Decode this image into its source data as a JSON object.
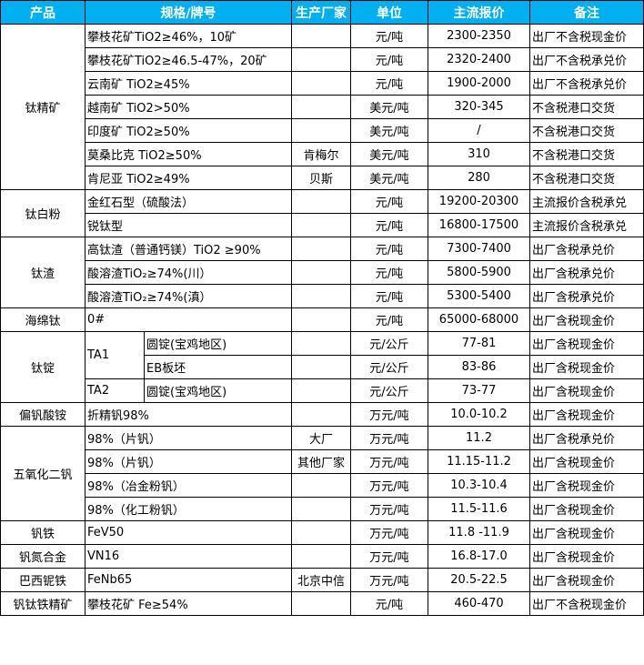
{
  "header": {
    "product": "产品",
    "spec": "规格/牌号",
    "maker": "生产厂家",
    "unit": "单位",
    "price": "主流报价",
    "note": "备注"
  },
  "colors": {
    "header_bg": "#00b0f0",
    "header_text": "#ffffff",
    "border": "#000000"
  },
  "groups": [
    {
      "product": "钛精矿",
      "rows": [
        {
          "spec": "攀枝花矿TiO2≥46%，10矿",
          "maker": "",
          "unit": "元/吨",
          "price": "2300-2350",
          "note": "出厂不含税现金价"
        },
        {
          "spec": "攀枝花矿TiO2≥46.5-47%，20矿",
          "maker": "",
          "unit": "元/吨",
          "price": "2320-2400",
          "note": "出厂不含税承兑价"
        },
        {
          "spec": "云南矿 TiO2≥45%",
          "maker": "",
          "unit": "元/吨",
          "price": "1900-2000",
          "note": "出厂不含税承兑价"
        },
        {
          "spec": "越南矿 TiO2>50%",
          "maker": "",
          "unit": "美元/吨",
          "price": "320-345",
          "note": "不含税港口交货"
        },
        {
          "spec": "印度矿 TiO2≥50%",
          "maker": "",
          "unit": "美元/吨",
          "price": "/",
          "note": "不含税港口交货"
        },
        {
          "spec": "莫桑比克 TiO2≥50%",
          "maker": "肯梅尔",
          "unit": "美元/吨",
          "price": "310",
          "note": "不含税港口交货"
        },
        {
          "spec": "肯尼亚 TiO2≥49%",
          "maker": "贝斯",
          "unit": "美元/吨",
          "price": "280",
          "note": "不含税港口交货"
        }
      ]
    },
    {
      "product": "钛白粉",
      "rows": [
        {
          "spec": "金红石型（硫酸法）",
          "maker": "",
          "unit": "元/吨",
          "price": "19200-20300",
          "note": "主流报价含税承兑"
        },
        {
          "spec": "锐钛型",
          "maker": "",
          "unit": "元/吨",
          "price": "16800-17500",
          "note": "主流报价含税承兑"
        }
      ]
    },
    {
      "product": "钛渣",
      "rows": [
        {
          "spec": "高钛渣（普通钙镁）TiO2 ≥90%",
          "maker": "",
          "unit": "元/吨",
          "price": "7300-7400",
          "note": "出厂含税承兑价"
        },
        {
          "spec": "酸溶渣TiO₂≥74%(川）",
          "maker": "",
          "unit": "元/吨",
          "price": "5800-5900",
          "note": "出厂含税承兑价"
        },
        {
          "spec": "酸溶渣TiO₂≥74%(滇）",
          "maker": "",
          "unit": "元/吨",
          "price": "5300-5400",
          "note": "出厂含税承兑价"
        }
      ]
    },
    {
      "product": "海绵钛",
      "rows": [
        {
          "spec": "0#",
          "maker": "",
          "unit": "元/吨",
          "price": "65000-68000",
          "note": "出厂含税现金价"
        }
      ]
    },
    {
      "product": "钛锭",
      "rows": [
        {
          "grade": "TA1",
          "grade_span": 2,
          "sub": "圆锭(宝鸡地区)",
          "maker": "",
          "unit": "元/公斤",
          "price": "77-81",
          "note": "出厂含税现金价"
        },
        {
          "sub": "EB板坯",
          "maker": "",
          "unit": "元/公斤",
          "price": "83-86",
          "note": "出厂含税现金价"
        },
        {
          "grade": "TA2",
          "grade_span": 1,
          "sub": "圆锭(宝鸡地区)",
          "maker": "",
          "unit": "元/公斤",
          "price": "73-77",
          "note": "出厂含税现金价"
        }
      ]
    },
    {
      "product": "偏钒酸铵",
      "rows": [
        {
          "spec": "折精钒98%",
          "maker": "",
          "unit": "万元/吨",
          "price": "10.0-10.2",
          "note": "出厂含税现金价"
        }
      ]
    },
    {
      "product": "五氧化二钒",
      "rows": [
        {
          "spec": "98%（片钒）",
          "maker": "大厂",
          "unit": "万元/吨",
          "price": "11.2",
          "note": "出厂含税承兑价"
        },
        {
          "spec": "98%（片钒）",
          "maker": "其他厂家",
          "unit": "万元/吨",
          "price": "11.15-11.2",
          "note": "出厂含税现金价"
        },
        {
          "spec": "98%（冶金粉钒）",
          "maker": "",
          "unit": "万元/吨",
          "price": "10.3-10.4",
          "note": "出厂含税现金价"
        },
        {
          "spec": "98%（化工粉钒）",
          "maker": "",
          "unit": "万元/吨",
          "price": "11.5-11.6",
          "note": "出厂含税现金价"
        }
      ]
    },
    {
      "product": "钒铁",
      "rows": [
        {
          "spec": "FeV50",
          "maker": "",
          "unit": "万元/吨",
          "price": "11.8 -11.9",
          "note": "出厂含税现金价"
        }
      ]
    },
    {
      "product": "钒氮合金",
      "rows": [
        {
          "spec": "VN16",
          "maker": "",
          "unit": "万元/吨",
          "price": "16.8-17.0",
          "note": "出厂含税现金价"
        }
      ]
    },
    {
      "product": "巴西铌铁",
      "rows": [
        {
          "spec": "FeNb65",
          "maker": "北京中信",
          "unit": "万元/吨",
          "price": "20.5-22.5",
          "note": "出厂含税现金价"
        }
      ]
    },
    {
      "product": "钒钛铁精矿",
      "rows": [
        {
          "spec": "攀枝花矿 Fe≥54%",
          "maker": "",
          "unit": "元/吨",
          "price": "460-470",
          "note": "出厂不含税现金价"
        }
      ]
    }
  ]
}
